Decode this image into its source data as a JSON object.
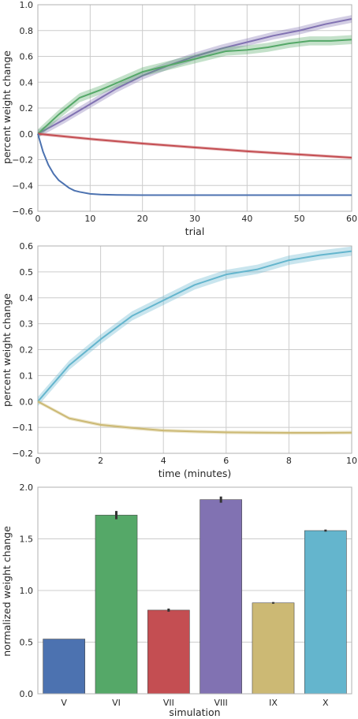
{
  "chart_data": [
    {
      "type": "line",
      "xlabel": "trial",
      "ylabel": "percent weight change",
      "xlim": [
        0,
        60
      ],
      "ylim": [
        -0.6,
        1.0
      ],
      "xticks": [
        0,
        10,
        20,
        30,
        40,
        50,
        60
      ],
      "yticks": [
        -0.6,
        -0.4,
        -0.2,
        0.0,
        0.2,
        0.4,
        0.6,
        0.8,
        1.0
      ],
      "xtick_labels": [
        "0",
        "10",
        "20",
        "30",
        "40",
        "50",
        "60"
      ],
      "ytick_labels": [
        "−0.6",
        "−0.4",
        "−0.2",
        "0.0",
        "0.2",
        "0.4",
        "0.6",
        "0.8",
        "1.0"
      ],
      "grid": true,
      "series": [
        {
          "color": "#8172b2",
          "band": 0.03,
          "x": [
            0,
            5,
            10,
            15,
            20,
            25,
            30,
            35,
            40,
            45,
            50,
            55,
            60
          ],
          "y": [
            0,
            0.11,
            0.23,
            0.35,
            0.45,
            0.53,
            0.6,
            0.66,
            0.71,
            0.76,
            0.8,
            0.85,
            0.89
          ]
        },
        {
          "color": "#55a868",
          "band": 0.035,
          "x": [
            0,
            4,
            8,
            12,
            16,
            20,
            24,
            28,
            32,
            36,
            40,
            44,
            48,
            52,
            56,
            60
          ],
          "y": [
            0,
            0.15,
            0.28,
            0.34,
            0.41,
            0.48,
            0.52,
            0.56,
            0.6,
            0.64,
            0.65,
            0.67,
            0.7,
            0.72,
            0.72,
            0.73
          ]
        },
        {
          "color": "#c44e52",
          "band": 0.012,
          "x": [
            0,
            10,
            20,
            30,
            40,
            50,
            60
          ],
          "y": [
            0,
            -0.04,
            -0.075,
            -0.105,
            -0.135,
            -0.16,
            -0.185
          ]
        },
        {
          "color": "#4c72b0",
          "band": 0.0,
          "x": [
            0,
            1,
            2,
            3,
            4,
            5,
            6,
            7,
            8,
            10,
            12,
            15,
            20,
            30,
            60
          ],
          "y": [
            0,
            -0.14,
            -0.24,
            -0.31,
            -0.36,
            -0.39,
            -0.42,
            -0.44,
            -0.45,
            -0.465,
            -0.47,
            -0.473,
            -0.475,
            -0.475,
            -0.475
          ]
        }
      ]
    },
    {
      "type": "line",
      "xlabel": "time (minutes)",
      "ylabel": "percent weight change",
      "xlim": [
        0,
        10
      ],
      "ylim": [
        -0.2,
        0.6
      ],
      "xticks": [
        0,
        2,
        4,
        6,
        8,
        10
      ],
      "yticks": [
        -0.2,
        -0.1,
        0.0,
        0.1,
        0.2,
        0.3,
        0.4,
        0.5,
        0.6
      ],
      "xtick_labels": [
        "0",
        "2",
        "4",
        "6",
        "8",
        "10"
      ],
      "ytick_labels": [
        "−0.2",
        "−0.1",
        "0.0",
        "0.1",
        "0.2",
        "0.3",
        "0.4",
        "0.5",
        "0.6"
      ],
      "grid": true,
      "series": [
        {
          "color": "#64b5cd",
          "band": 0.018,
          "x": [
            0,
            1,
            2,
            3,
            4,
            5,
            6,
            7,
            8,
            9,
            10
          ],
          "y": [
            0,
            0.14,
            0.24,
            0.33,
            0.39,
            0.45,
            0.49,
            0.51,
            0.545,
            0.565,
            0.58
          ]
        },
        {
          "color": "#ccb974",
          "band": 0.007,
          "x": [
            0,
            1,
            2,
            3,
            4,
            5,
            6,
            7,
            8,
            9,
            10
          ],
          "y": [
            0,
            -0.065,
            -0.09,
            -0.102,
            -0.112,
            -0.116,
            -0.119,
            -0.12,
            -0.121,
            -0.121,
            -0.12
          ]
        }
      ]
    },
    {
      "type": "bar",
      "xlabel": "simulation",
      "ylabel": "normalized weight change",
      "categories": [
        "V",
        "VI",
        "VII",
        "VIII",
        "IX",
        "X"
      ],
      "values": [
        0.53,
        1.73,
        0.81,
        1.88,
        0.88,
        1.58
      ],
      "errors": [
        0.0,
        0.04,
        0.015,
        0.03,
        0.008,
        0.01
      ],
      "colors": [
        "#4c72b0",
        "#55a868",
        "#c44e52",
        "#8172b2",
        "#ccb974",
        "#64b5cd"
      ],
      "ylim": [
        0.0,
        2.0
      ],
      "yticks": [
        0.0,
        0.5,
        1.0,
        1.5,
        2.0
      ],
      "ytick_labels": [
        "0.0",
        "0.5",
        "1.0",
        "1.5",
        "2.0"
      ],
      "grid": true
    }
  ]
}
